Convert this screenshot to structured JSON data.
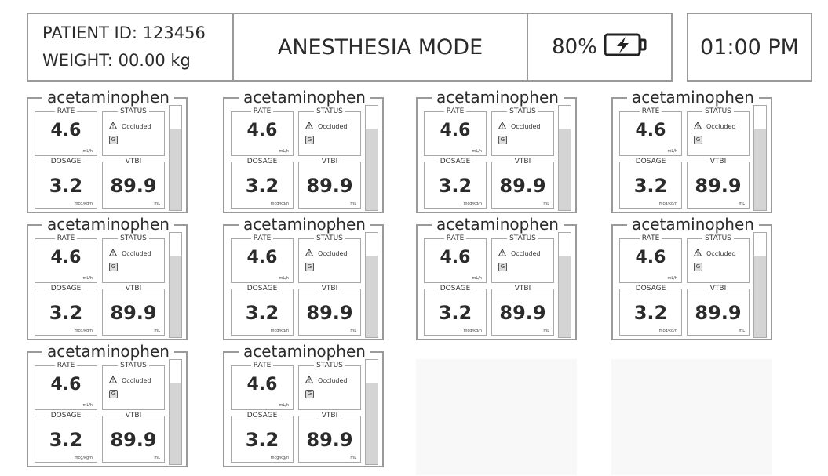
{
  "header": {
    "patient_id_label": "PATIENT ID:",
    "patient_id": "123456",
    "weight_label": "WEIGHT:",
    "weight": "00.00 kg",
    "mode": "ANESTHESIA MODE",
    "battery": "80%",
    "battery_icon": "battery-charging-icon",
    "time": "01:00 PM"
  },
  "colors": {
    "border": "#9a9a9a",
    "gauge_fill": "#d4d4d4",
    "empty_slot": "#f8f8f8"
  },
  "pumps": [
    {
      "drug": "acetaminophen",
      "rate_label": "RATE",
      "rate": "4.6",
      "rate_unit": "mL/h",
      "status_label": "STATUS",
      "status": "Occluded",
      "status_icon": "warning-icon",
      "badge": "G",
      "dosage_label": "DOSAGE",
      "dosage": "3.2",
      "dosage_unit": "mcg/kg/h",
      "vtbi_label": "VTBI",
      "vtbi": "89.9",
      "vtbi_unit": "mL",
      "volume_level": 0.78
    },
    {
      "drug": "acetaminophen",
      "rate_label": "RATE",
      "rate": "4.6",
      "rate_unit": "mL/h",
      "status_label": "STATUS",
      "status": "Occluded",
      "status_icon": "warning-icon",
      "badge": "G",
      "dosage_label": "DOSAGE",
      "dosage": "3.2",
      "dosage_unit": "mcg/kg/h",
      "vtbi_label": "VTBI",
      "vtbi": "89.9",
      "vtbi_unit": "mL",
      "volume_level": 0.78
    },
    {
      "drug": "acetaminophen",
      "rate_label": "RATE",
      "rate": "4.6",
      "rate_unit": "mL/h",
      "status_label": "STATUS",
      "status": "Occluded",
      "status_icon": "warning-icon",
      "badge": "G",
      "dosage_label": "DOSAGE",
      "dosage": "3.2",
      "dosage_unit": "mcg/kg/h",
      "vtbi_label": "VTBI",
      "vtbi": "89.9",
      "vtbi_unit": "mL",
      "volume_level": 0.78
    },
    {
      "drug": "acetaminophen",
      "rate_label": "RATE",
      "rate": "4.6",
      "rate_unit": "mL/h",
      "status_label": "STATUS",
      "status": "Occluded",
      "status_icon": "warning-icon",
      "badge": "G",
      "dosage_label": "DOSAGE",
      "dosage": "3.2",
      "dosage_unit": "mcg/kg/h",
      "vtbi_label": "VTBI",
      "vtbi": "89.9",
      "vtbi_unit": "mL",
      "volume_level": 0.78
    },
    {
      "drug": "acetaminophen",
      "rate_label": "RATE",
      "rate": "4.6",
      "rate_unit": "mL/h",
      "status_label": "STATUS",
      "status": "Occluded",
      "status_icon": "warning-icon",
      "badge": "G",
      "dosage_label": "DOSAGE",
      "dosage": "3.2",
      "dosage_unit": "mcg/kg/h",
      "vtbi_label": "VTBI",
      "vtbi": "89.9",
      "vtbi_unit": "mL",
      "volume_level": 0.78
    },
    {
      "drug": "acetaminophen",
      "rate_label": "RATE",
      "rate": "4.6",
      "rate_unit": "mL/h",
      "status_label": "STATUS",
      "status": "Occluded",
      "status_icon": "warning-icon",
      "badge": "G",
      "dosage_label": "DOSAGE",
      "dosage": "3.2",
      "dosage_unit": "mcg/kg/h",
      "vtbi_label": "VTBI",
      "vtbi": "89.9",
      "vtbi_unit": "mL",
      "volume_level": 0.78
    },
    {
      "drug": "acetaminophen",
      "rate_label": "RATE",
      "rate": "4.6",
      "rate_unit": "mL/h",
      "status_label": "STATUS",
      "status": "Occluded",
      "status_icon": "warning-icon",
      "badge": "G",
      "dosage_label": "DOSAGE",
      "dosage": "3.2",
      "dosage_unit": "mcg/kg/h",
      "vtbi_label": "VTBI",
      "vtbi": "89.9",
      "vtbi_unit": "mL",
      "volume_level": 0.78
    },
    {
      "drug": "acetaminophen",
      "rate_label": "RATE",
      "rate": "4.6",
      "rate_unit": "mL/h",
      "status_label": "STATUS",
      "status": "Occluded",
      "status_icon": "warning-icon",
      "badge": "G",
      "dosage_label": "DOSAGE",
      "dosage": "3.2",
      "dosage_unit": "mcg/kg/h",
      "vtbi_label": "VTBI",
      "vtbi": "89.9",
      "vtbi_unit": "mL",
      "volume_level": 0.78
    },
    {
      "drug": "acetaminophen",
      "rate_label": "RATE",
      "rate": "4.6",
      "rate_unit": "mL/h",
      "status_label": "STATUS",
      "status": "Occluded",
      "status_icon": "warning-icon",
      "badge": "G",
      "dosage_label": "DOSAGE",
      "dosage": "3.2",
      "dosage_unit": "mcg/kg/h",
      "vtbi_label": "VTBI",
      "vtbi": "89.9",
      "vtbi_unit": "mL",
      "volume_level": 0.78
    },
    {
      "drug": "acetaminophen",
      "rate_label": "RATE",
      "rate": "4.6",
      "rate_unit": "mL/h",
      "status_label": "STATUS",
      "status": "Occluded",
      "status_icon": "warning-icon",
      "badge": "G",
      "dosage_label": "DOSAGE",
      "dosage": "3.2",
      "dosage_unit": "mcg/kg/h",
      "vtbi_label": "VTBI",
      "vtbi": "89.9",
      "vtbi_unit": "mL",
      "volume_level": 0.78
    }
  ],
  "empty_slots": 2
}
